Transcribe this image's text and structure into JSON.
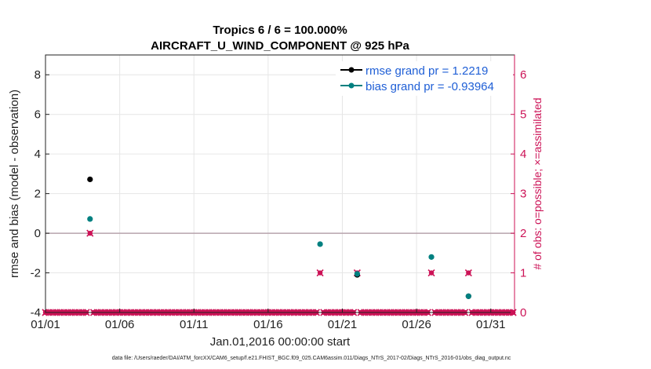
{
  "chart_data": {
    "type": "scatter",
    "title_line1": "Tropics 6 / 6 = 100.000%",
    "title_line2": "AIRCRAFT_U_WIND_COMPONENT @ 925 hPa",
    "xlabel": "Jan.01,2016 00:00:00 start",
    "ylabel": "rmse and bias (model - observation)",
    "ylabel_right": "# of obs: o=possible; ×=assimilated",
    "xlim": [
      0,
      31.6
    ],
    "ylim": [
      -4,
      9
    ],
    "ylim_right": [
      0,
      6.5
    ],
    "x_ticks": [
      0,
      5,
      10,
      15,
      20,
      25,
      30
    ],
    "x_tick_labels": [
      "01/01",
      "01/06",
      "01/11",
      "01/16",
      "01/21",
      "01/26",
      "01/31"
    ],
    "y_ticks": [
      -4,
      -2,
      0,
      2,
      4,
      6,
      8
    ],
    "y_tick_labels": [
      "-4",
      "-2",
      "0",
      "2",
      "4",
      "6",
      "8"
    ],
    "y_right_ticks": [
      0,
      1,
      2,
      3,
      4,
      5,
      6
    ],
    "y_right_tick_labels": [
      "0",
      "1",
      "2",
      "3",
      "4",
      "5",
      "6"
    ],
    "series": [
      {
        "name": "rmse grand pr = 1.2219",
        "color": "#000000",
        "points": [
          [
            3.0,
            2.72
          ],
          [
            21.0,
            -2.1
          ],
          [
            28.5,
            -3.18
          ]
        ]
      },
      {
        "name": "bias grand pr = -0.93964",
        "color": "#008080",
        "points": [
          [
            3.0,
            0.72
          ],
          [
            18.5,
            -0.55
          ],
          [
            21.0,
            -2.05
          ],
          [
            26.0,
            -1.2
          ],
          [
            28.5,
            -3.18
          ]
        ]
      }
    ],
    "obs_count": {
      "name": "# of obs",
      "color": "#cc1256",
      "step": 0.25,
      "zero_range": [
        0,
        31.5
      ],
      "nonzero_points": [
        [
          3.0,
          2
        ],
        [
          18.5,
          1
        ],
        [
          21.0,
          1
        ],
        [
          26.0,
          1
        ],
        [
          28.5,
          1
        ]
      ]
    },
    "zero_line": 0,
    "grid": true,
    "legend_position": "top-right"
  },
  "footer": "data file: /Users/raeder/DAI/ATM_forcXX/CAM6_setup/f.e21.FHIST_BGC.f09_025.CAM6assim.011/Diags_NTrS_2017-02/Diags_NTrS_2016-01/obs_diag_output.nc"
}
